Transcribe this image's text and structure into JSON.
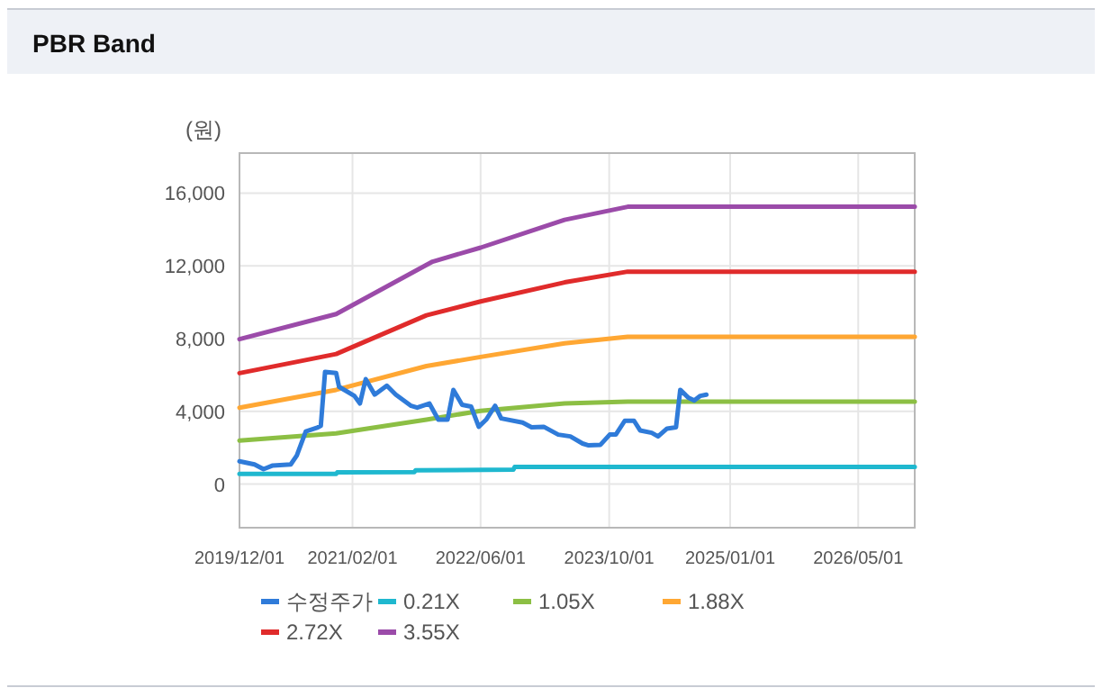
{
  "chart_data": {
    "type": "line",
    "title": "PBR Band",
    "ylabel": "(원)",
    "xlim": [
      "2019-12-01",
      "2026-12-01"
    ],
    "ylim": [
      -2400,
      18200
    ],
    "xticks": [
      {
        "value": "2019-12-01",
        "label": "2019/12/01"
      },
      {
        "value": "2021-02-01",
        "label": "2021/02/01"
      },
      {
        "value": "2022-06-01",
        "label": "2022/06/01"
      },
      {
        "value": "2023-10-01",
        "label": "2023/10/01"
      },
      {
        "value": "2025-01-01",
        "label": "2025/01/01"
      },
      {
        "value": "2026-05-01",
        "label": "2026/05/01"
      }
    ],
    "yticks": [
      {
        "value": 0,
        "label": "0"
      },
      {
        "value": 4000,
        "label": "4,000"
      },
      {
        "value": 8000,
        "label": "8,000"
      },
      {
        "value": 12000,
        "label": "12,000"
      },
      {
        "value": 16000,
        "label": "16,000"
      }
    ],
    "grid": true,
    "legend": "bottom",
    "line_style": "solid",
    "marker": "none",
    "series": [
      {
        "name": "수정주가",
        "color": "#2f7bd9",
        "x": [
          "2019-12-01",
          "2020-01-27",
          "2020-03-01",
          "2020-04-05",
          "2020-06-12",
          "2020-07-05",
          "2020-08-08",
          "2020-09-23",
          "2020-10-04",
          "2020-10-20",
          "2020-12-01",
          "2020-12-12",
          "2021-02-08",
          "2021-03-01",
          "2021-03-23",
          "2021-04-26",
          "2021-06-11",
          "2021-07-15",
          "2021-09-11",
          "2021-10-04",
          "2021-11-19",
          "2021-12-23",
          "2022-01-27",
          "2022-02-18",
          "2022-03-23",
          "2022-04-26",
          "2022-05-25",
          "2022-06-22",
          "2022-07-26",
          "2022-08-18",
          "2022-11-07",
          "2022-12-11",
          "2023-01-26",
          "2023-03-22",
          "2023-05-07",
          "2023-06-22",
          "2023-07-15",
          "2023-08-29",
          "2023-10-03",
          "2023-10-26",
          "2023-11-29",
          "2024-01-03",
          "2024-01-26",
          "2024-03-10",
          "2024-04-03",
          "2024-05-07",
          "2024-06-10",
          "2024-06-26",
          "2024-07-26",
          "2024-08-18",
          "2024-09-10",
          "2024-10-03"
        ],
        "values": [
          1250,
          1080,
          820,
          1020,
          1080,
          1570,
          2890,
          3120,
          3210,
          6170,
          6100,
          5350,
          4850,
          4430,
          5770,
          4920,
          5410,
          4920,
          4300,
          4200,
          4430,
          3540,
          3540,
          5180,
          4360,
          4260,
          3150,
          3540,
          4300,
          3610,
          3380,
          3120,
          3150,
          2720,
          2620,
          2230,
          2130,
          2160,
          2720,
          2720,
          3480,
          3480,
          2950,
          2820,
          2620,
          3050,
          3120,
          5180,
          4760,
          4590,
          4850,
          4920
        ]
      },
      {
        "name": "0.21X",
        "color": "#1fb8cf",
        "x": [
          "2019-12-01",
          "2020-12-01",
          "2020-12-05",
          "2021-09-23",
          "2021-09-28",
          "2022-10-03",
          "2022-10-08",
          "2026-12-01"
        ],
        "values": [
          560,
          560,
          640,
          660,
          760,
          790,
          940,
          940
        ]
      },
      {
        "name": "1.05X",
        "color": "#8cbf44",
        "x": [
          "2019-12-01",
          "2020-12-01",
          "2021-11-08",
          "2022-06-01",
          "2023-04-15",
          "2023-12-10",
          "2026-12-01"
        ],
        "values": [
          2390,
          2790,
          3540,
          4030,
          4430,
          4530,
          4530
        ]
      },
      {
        "name": "1.88X",
        "color": "#ffa733",
        "x": [
          "2019-12-01",
          "2020-12-01",
          "2021-11-08",
          "2022-06-01",
          "2023-04-15",
          "2023-12-10",
          "2026-12-01"
        ],
        "values": [
          4200,
          5180,
          6490,
          6990,
          7740,
          8100,
          8100
        ]
      },
      {
        "name": "2.72X",
        "color": "#e02b2b",
        "x": [
          "2019-12-01",
          "2020-12-01",
          "2021-11-08",
          "2022-06-01",
          "2023-04-15",
          "2023-12-10",
          "2026-12-01"
        ],
        "values": [
          6100,
          7150,
          9280,
          10040,
          11090,
          11680,
          11680
        ]
      },
      {
        "name": "3.55X",
        "color": "#9b4ba9",
        "x": [
          "2019-12-01",
          "2020-12-01",
          "2021-12-01",
          "2022-06-01",
          "2023-04-15",
          "2023-12-10",
          "2026-12-01"
        ],
        "values": [
          7970,
          9350,
          12230,
          13000,
          14530,
          15250,
          15250
        ]
      }
    ]
  }
}
